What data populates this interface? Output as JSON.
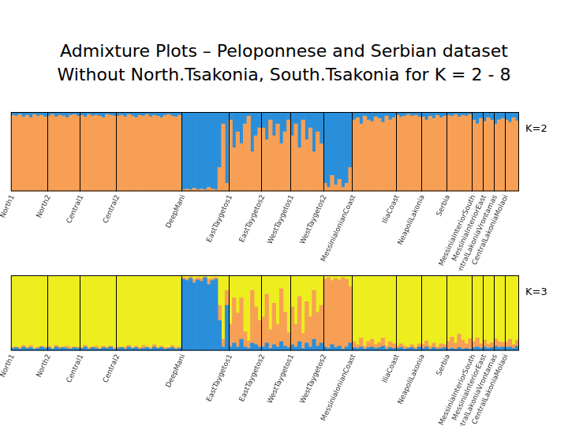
{
  "heading": [
    "Admixture Plots – Peloponnese and Serbian dataset",
    "Without North.Tsakonia, South.Tsakonia for K = 2 - 8"
  ],
  "chart_data": [
    {
      "type": "bar",
      "title": "K=2",
      "stacked": true,
      "grid": false,
      "tick_labels": "x",
      "ylim": [
        0,
        1
      ],
      "categories": [
        "North1",
        null,
        null,
        null,
        null,
        null,
        null,
        null,
        null,
        null,
        "North2",
        null,
        null,
        null,
        null,
        null,
        null,
        null,
        null,
        "Central1",
        null,
        null,
        null,
        null,
        null,
        null,
        null,
        null,
        null,
        "Central2",
        null,
        null,
        null,
        null,
        null,
        null,
        null,
        null,
        null,
        null,
        null,
        null,
        null,
        null,
        null,
        null,
        null,
        "DeepMani",
        null,
        null,
        null,
        null,
        null,
        null,
        null,
        null,
        null,
        null,
        null,
        null,
        "EastTaygetos1",
        null,
        null,
        null,
        null,
        null,
        null,
        null,
        null,
        "EastTaygetos2",
        null,
        null,
        null,
        null,
        null,
        null,
        null,
        "WestTaygetos1",
        null,
        null,
        null,
        null,
        null,
        null,
        null,
        null,
        "WestTaygetos2",
        null,
        null,
        null,
        null,
        null,
        null,
        null,
        "MessiniaIonianCoast",
        null,
        null,
        null,
        null,
        null,
        null,
        null,
        null,
        null,
        null,
        null,
        "IliaCoast",
        null,
        null,
        null,
        null,
        null,
        null,
        "NeapoliLakonia",
        null,
        null,
        null,
        null,
        null,
        null,
        "Serbia",
        null,
        null,
        null,
        null,
        null,
        null,
        "MessiniaInteriorSouth",
        null,
        null,
        "MessiniaInteriorEast",
        null,
        null,
        "CentralLakoniaVrontamas",
        null,
        null,
        "CentralLakoniaMolaoi",
        null,
        null,
        null
      ],
      "series": [
        {
          "color": "#f7a055",
          "values": [
            0.96,
            0.95,
            0.97,
            0.94,
            0.96,
            0.93,
            0.97,
            0.95,
            0.96,
            0.94,
            0.95,
            0.97,
            0.94,
            0.96,
            0.95,
            0.93,
            0.96,
            0.97,
            0.95,
            0.96,
            0.94,
            0.97,
            0.95,
            0.96,
            0.95,
            0.93,
            0.97,
            0.96,
            0.95,
            0.95,
            0.96,
            0.94,
            0.97,
            0.95,
            0.93,
            0.96,
            0.95,
            0.97,
            0.94,
            0.96,
            0.95,
            0.93,
            0.96,
            0.97,
            0.95,
            0.94,
            0.96,
            0.02,
            0.03,
            0.02,
            0.04,
            0.02,
            0.03,
            0.02,
            0.05,
            0.03,
            0.02,
            0.3,
            0.85,
            0.1,
            0.9,
            0.55,
            0.75,
            0.6,
            0.85,
            0.95,
            0.5,
            0.7,
            0.8,
            0.8,
            0.65,
            0.9,
            0.7,
            0.85,
            0.6,
            0.75,
            0.9,
            0.7,
            0.85,
            0.55,
            0.9,
            0.65,
            0.8,
            0.5,
            0.75,
            0.6,
            0.1,
            0.05,
            0.2,
            0.08,
            0.15,
            0.05,
            0.1,
            0.3,
            0.9,
            0.93,
            0.85,
            0.95,
            0.9,
            0.88,
            0.94,
            0.92,
            0.87,
            0.95,
            0.9,
            0.93,
            0.96,
            0.94,
            0.95,
            0.97,
            0.95,
            0.96,
            0.94,
            0.94,
            0.9,
            0.95,
            0.92,
            0.96,
            0.93,
            0.95,
            0.96,
            0.95,
            0.97,
            0.94,
            0.96,
            0.95,
            0.97,
            0.9,
            0.85,
            0.92,
            0.88,
            0.93,
            0.9,
            0.85,
            0.9,
            0.92,
            0.9,
            0.87,
            0.93,
            0.89
          ]
        },
        {
          "color": "#2a8fdb",
          "values": [
            0.04,
            0.05,
            0.03,
            0.06,
            0.04,
            0.07,
            0.03,
            0.05,
            0.04,
            0.06,
            0.05,
            0.03,
            0.06,
            0.04,
            0.05,
            0.07,
            0.04,
            0.03,
            0.05,
            0.04,
            0.06,
            0.03,
            0.05,
            0.04,
            0.05,
            0.07,
            0.03,
            0.04,
            0.05,
            0.05,
            0.04,
            0.06,
            0.03,
            0.05,
            0.07,
            0.04,
            0.05,
            0.03,
            0.06,
            0.04,
            0.05,
            0.07,
            0.04,
            0.03,
            0.05,
            0.06,
            0.04,
            0.98,
            0.97,
            0.98,
            0.96,
            0.98,
            0.97,
            0.98,
            0.95,
            0.97,
            0.98,
            0.7,
            0.15,
            0.9,
            0.1,
            0.45,
            0.25,
            0.4,
            0.15,
            0.05,
            0.5,
            0.3,
            0.2,
            0.2,
            0.35,
            0.1,
            0.3,
            0.15,
            0.4,
            0.25,
            0.1,
            0.3,
            0.15,
            0.45,
            0.1,
            0.35,
            0.2,
            0.5,
            0.25,
            0.4,
            0.9,
            0.95,
            0.8,
            0.92,
            0.85,
            0.95,
            0.9,
            0.7,
            0.1,
            0.07,
            0.15,
            0.05,
            0.1,
            0.12,
            0.06,
            0.08,
            0.13,
            0.05,
            0.1,
            0.07,
            0.04,
            0.06,
            0.05,
            0.03,
            0.05,
            0.04,
            0.06,
            0.06,
            0.1,
            0.05,
            0.08,
            0.04,
            0.07,
            0.05,
            0.04,
            0.05,
            0.03,
            0.06,
            0.04,
            0.05,
            0.03,
            0.1,
            0.15,
            0.08,
            0.12,
            0.07,
            0.1,
            0.15,
            0.1,
            0.08,
            0.1,
            0.13,
            0.07,
            0.11
          ]
        }
      ]
    },
    {
      "type": "bar",
      "title": "K=3",
      "stacked": true,
      "grid": false,
      "tick_labels": "x",
      "ylim": [
        0,
        1
      ],
      "categories": [
        "North1",
        null,
        null,
        null,
        null,
        null,
        null,
        null,
        null,
        null,
        "North2",
        null,
        null,
        null,
        null,
        null,
        null,
        null,
        null,
        "Central1",
        null,
        null,
        null,
        null,
        null,
        null,
        null,
        null,
        null,
        "Central2",
        null,
        null,
        null,
        null,
        null,
        null,
        null,
        null,
        null,
        null,
        null,
        null,
        null,
        null,
        null,
        null,
        null,
        "DeepMani",
        null,
        null,
        null,
        null,
        null,
        null,
        null,
        null,
        null,
        null,
        null,
        null,
        "EastTaygetos1",
        null,
        null,
        null,
        null,
        null,
        null,
        null,
        null,
        "EastTaygetos2",
        null,
        null,
        null,
        null,
        null,
        null,
        null,
        "WestTaygetos1",
        null,
        null,
        null,
        null,
        null,
        null,
        null,
        null,
        "WestTaygetos2",
        null,
        null,
        null,
        null,
        null,
        null,
        null,
        "MessiniaIonianCoast",
        null,
        null,
        null,
        null,
        null,
        null,
        null,
        null,
        null,
        null,
        null,
        "IliaCoast",
        null,
        null,
        null,
        null,
        null,
        null,
        "NeapoliLakonia",
        null,
        null,
        null,
        null,
        null,
        null,
        "Serbia",
        null,
        null,
        null,
        null,
        null,
        null,
        "MessiniaInteriorSouth",
        null,
        null,
        "MessiniaInteriorEast",
        null,
        null,
        "CentralLakoniaVrontamas",
        null,
        null,
        "CentralLakoniaMolaoi",
        null,
        null,
        null
      ],
      "series": [
        {
          "color": "#2a8fdb",
          "values": [
            0.03,
            0.04,
            0.02,
            0.05,
            0.03,
            0.04,
            0.02,
            0.03,
            0.05,
            0.03,
            0.04,
            0.02,
            0.05,
            0.03,
            0.04,
            0.03,
            0.02,
            0.04,
            0.03,
            0.03,
            0.05,
            0.02,
            0.04,
            0.03,
            0.02,
            0.04,
            0.03,
            0.05,
            0.02,
            0.03,
            0.04,
            0.02,
            0.05,
            0.03,
            0.04,
            0.02,
            0.03,
            0.04,
            0.02,
            0.05,
            0.03,
            0.04,
            0.02,
            0.03,
            0.04,
            0.02,
            0.03,
            0.95,
            0.93,
            0.96,
            0.9,
            0.94,
            0.92,
            0.97,
            0.88,
            0.93,
            0.95,
            0.4,
            0.05,
            0.6,
            0.05,
            0.1,
            0.05,
            0.15,
            0.05,
            0.03,
            0.1,
            0.08,
            0.05,
            0.05,
            0.1,
            0.03,
            0.08,
            0.05,
            0.12,
            0.06,
            0.04,
            0.08,
            0.05,
            0.12,
            0.03,
            0.1,
            0.05,
            0.15,
            0.06,
            0.1,
            0.05,
            0.03,
            0.08,
            0.04,
            0.06,
            0.02,
            0.05,
            0.1,
            0.04,
            0.03,
            0.05,
            0.02,
            0.04,
            0.05,
            0.03,
            0.04,
            0.06,
            0.02,
            0.04,
            0.03,
            0.03,
            0.04,
            0.02,
            0.03,
            0.04,
            0.02,
            0.05,
            0.03,
            0.05,
            0.02,
            0.04,
            0.02,
            0.03,
            0.04,
            0.02,
            0.03,
            0.02,
            0.04,
            0.02,
            0.03,
            0.02,
            0.04,
            0.05,
            0.03,
            0.05,
            0.03,
            0.04,
            0.06,
            0.04,
            0.05,
            0.04,
            0.05,
            0.03,
            0.06
          ]
        },
        {
          "color": "#f7a055",
          "values": [
            0.02,
            0.01,
            0.02,
            0.02,
            0.01,
            0.03,
            0.01,
            0.02,
            0.01,
            0.02,
            0.02,
            0.01,
            0.02,
            0.02,
            0.01,
            0.03,
            0.02,
            0.01,
            0.02,
            0.01,
            0.02,
            0.02,
            0.01,
            0.03,
            0.01,
            0.02,
            0.02,
            0.01,
            0.02,
            0.02,
            0.01,
            0.03,
            0.02,
            0.01,
            0.02,
            0.02,
            0.04,
            0.01,
            0.02,
            0.03,
            0.01,
            0.02,
            0.02,
            0.01,
            0.03,
            0.02,
            0.02,
            0.02,
            0.03,
            0.02,
            0.05,
            0.03,
            0.04,
            0.01,
            0.07,
            0.03,
            0.02,
            0.2,
            0.1,
            0.2,
            0.3,
            0.6,
            0.45,
            0.55,
            0.2,
            0.1,
            0.7,
            0.5,
            0.35,
            0.4,
            0.65,
            0.25,
            0.55,
            0.3,
            0.7,
            0.45,
            0.2,
            0.5,
            0.3,
            0.6,
            0.2,
            0.55,
            0.4,
            0.65,
            0.45,
            0.5,
            0.9,
            0.94,
            0.85,
            0.92,
            0.88,
            0.95,
            0.9,
            0.75,
            0.08,
            0.05,
            0.12,
            0.04,
            0.08,
            0.1,
            0.05,
            0.07,
            0.11,
            0.04,
            0.08,
            0.06,
            0.03,
            0.05,
            0.04,
            0.02,
            0.04,
            0.03,
            0.04,
            0.05,
            0.08,
            0.04,
            0.06,
            0.03,
            0.06,
            0.04,
            0.1,
            0.15,
            0.08,
            0.18,
            0.12,
            0.06,
            0.14,
            0.08,
            0.12,
            0.06,
            0.09,
            0.05,
            0.07,
            0.1,
            0.08,
            0.06,
            0.07,
            0.1,
            0.05,
            0.08
          ]
        },
        {
          "color": "#eeee1f",
          "values": [
            0.95,
            0.95,
            0.96,
            0.93,
            0.96,
            0.93,
            0.97,
            0.95,
            0.94,
            0.95,
            0.94,
            0.97,
            0.93,
            0.95,
            0.95,
            0.94,
            0.96,
            0.95,
            0.95,
            0.96,
            0.93,
            0.96,
            0.95,
            0.94,
            0.97,
            0.94,
            0.95,
            0.94,
            0.96,
            0.95,
            0.95,
            0.95,
            0.93,
            0.96,
            0.94,
            0.96,
            0.93,
            0.95,
            0.96,
            0.92,
            0.96,
            0.94,
            0.96,
            0.96,
            0.93,
            0.96,
            0.95,
            0.03,
            0.04,
            0.02,
            0.05,
            0.03,
            0.04,
            0.02,
            0.05,
            0.04,
            0.03,
            0.4,
            0.85,
            0.2,
            0.65,
            0.3,
            0.5,
            0.3,
            0.75,
            0.87,
            0.2,
            0.42,
            0.6,
            0.55,
            0.25,
            0.72,
            0.37,
            0.65,
            0.18,
            0.49,
            0.76,
            0.42,
            0.65,
            0.28,
            0.77,
            0.35,
            0.55,
            0.2,
            0.49,
            0.4,
            0.05,
            0.03,
            0.07,
            0.04,
            0.06,
            0.03,
            0.05,
            0.15,
            0.88,
            0.92,
            0.83,
            0.94,
            0.88,
            0.85,
            0.92,
            0.89,
            0.83,
            0.94,
            0.88,
            0.91,
            0.94,
            0.91,
            0.94,
            0.95,
            0.92,
            0.95,
            0.91,
            0.92,
            0.87,
            0.94,
            0.9,
            0.95,
            0.91,
            0.92,
            0.88,
            0.82,
            0.9,
            0.78,
            0.86,
            0.91,
            0.84,
            0.88,
            0.83,
            0.91,
            0.86,
            0.92,
            0.89,
            0.84,
            0.88,
            0.89,
            0.89,
            0.85,
            0.92,
            0.86
          ]
        }
      ]
    }
  ]
}
